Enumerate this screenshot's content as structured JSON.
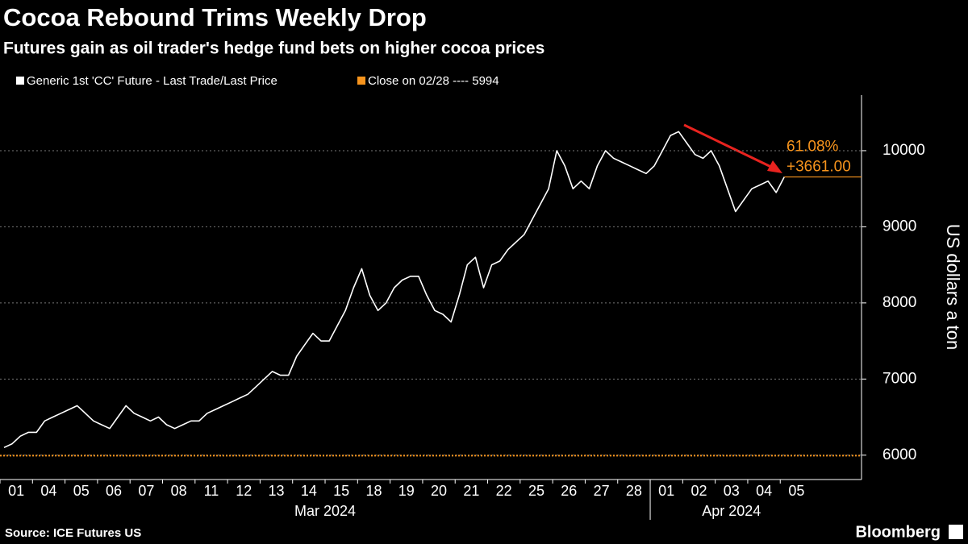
{
  "chart_data": {
    "type": "line",
    "title": "Cocoa Rebound Trims Weekly Drop",
    "subtitle": "Futures gain as oil trader's hedge fund bets on higher cocoa prices",
    "y_axis_label": "US dollars a ton",
    "source": "Source: ICE Futures US",
    "brand": "Bloomberg",
    "months": [
      "Mar 2024",
      "Apr 2024"
    ],
    "categories": [
      null,
      "01",
      null,
      null,
      null,
      "04",
      null,
      null,
      null,
      "05",
      null,
      null,
      null,
      "06",
      null,
      null,
      null,
      "07",
      null,
      null,
      null,
      "08",
      null,
      null,
      null,
      "11",
      null,
      null,
      null,
      "12",
      null,
      null,
      null,
      "13",
      null,
      null,
      null,
      "14",
      null,
      null,
      null,
      "15",
      null,
      null,
      null,
      "18",
      null,
      null,
      null,
      "19",
      null,
      null,
      null,
      "20",
      null,
      null,
      null,
      "21",
      null,
      null,
      null,
      "22",
      null,
      null,
      null,
      "25",
      null,
      null,
      null,
      "26",
      null,
      null,
      null,
      "27",
      null,
      null,
      null,
      "28",
      null,
      null,
      null,
      "01",
      null,
      null,
      null,
      "02",
      null,
      null,
      null,
      "03",
      null,
      null,
      null,
      "04",
      null,
      null,
      null,
      "05",
      null,
      null
    ],
    "series": [
      {
        "name": "Generic 1st 'CC' Future - Last Trade/Last Price",
        "color": "#ffffff",
        "values": [
          6100,
          6150,
          6250,
          6300,
          6300,
          6450,
          6500,
          6550,
          6600,
          6650,
          6550,
          6450,
          6400,
          6350,
          6500,
          6650,
          6550,
          6500,
          6450,
          6500,
          6400,
          6350,
          6400,
          6450,
          6450,
          6550,
          6600,
          6650,
          6700,
          6750,
          6800,
          6900,
          7000,
          7100,
          7050,
          7050,
          7300,
          7450,
          7600,
          7500,
          7500,
          7700,
          7900,
          8200,
          8450,
          8100,
          7900,
          8000,
          8200,
          8300,
          8350,
          8350,
          8100,
          7900,
          7850,
          7750,
          8100,
          8500,
          8600,
          8200,
          8500,
          8550,
          8700,
          8800,
          8900,
          9100,
          9300,
          9500,
          10000,
          9800,
          9500,
          9600,
          9500,
          9800,
          10000,
          9900,
          9850,
          9800,
          9750,
          9700,
          9800,
          10000,
          10200,
          10250,
          10100,
          9950,
          9900,
          10000,
          9800,
          9500,
          9200,
          9350,
          9500,
          9550,
          9600,
          9450,
          9655,
          null,
          null,
          null
        ]
      }
    ],
    "reference_line": {
      "name": "Close on 02/28 ---- 5994",
      "value": 5994,
      "color": "#f7941d"
    },
    "last_price": {
      "value": 9655,
      "labels": [
        "61.08%",
        "+3661.00"
      ],
      "color": "#f7941d"
    },
    "ylim": [
      5680,
      10730
    ],
    "yticks": [
      6000,
      7000,
      8000,
      9000,
      10000
    ],
    "grid": true
  }
}
